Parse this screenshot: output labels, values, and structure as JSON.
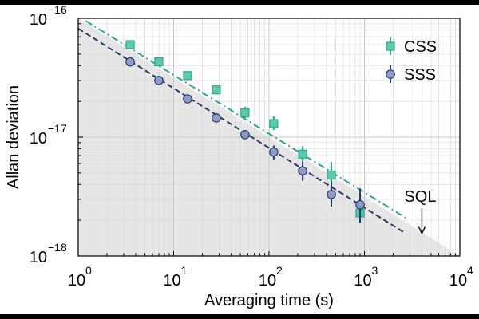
{
  "chart_data": {
    "type": "scatter",
    "xlabel": "Averaging time (s)",
    "ylabel": "Allan deviation",
    "xscale": "log",
    "yscale": "log",
    "xlim": [
      1,
      10000
    ],
    "ylim": [
      1e-18,
      1e-16
    ],
    "x_ticks": [
      {
        "value": 1,
        "base": "10",
        "exp": "0"
      },
      {
        "value": 10,
        "base": "10",
        "exp": "1"
      },
      {
        "value": 100,
        "base": "10",
        "exp": "2"
      },
      {
        "value": 1000,
        "base": "10",
        "exp": "3"
      },
      {
        "value": 10000,
        "base": "10",
        "exp": "4"
      }
    ],
    "y_ticks": [
      {
        "value": 1e-18,
        "base": "10",
        "exp": "−18"
      },
      {
        "value": 1e-17,
        "base": "10",
        "exp": "−17"
      },
      {
        "value": 1e-16,
        "base": "10",
        "exp": "−16"
      }
    ],
    "grid": true,
    "legend_position": "top-right",
    "colors": {
      "css": "#2aa98c",
      "css_fill": "#5cc9ad",
      "sss": "#2b3a6b",
      "sss_fill": "#8f9cc9",
      "sql_region": "#e6e6e6"
    },
    "series": [
      {
        "name": "CSS",
        "marker": "square",
        "points": [
          {
            "x": 3.5,
            "y": 6e-17,
            "err_low": 4e-18,
            "err_high": 4e-18
          },
          {
            "x": 7,
            "y": 4.3e-17,
            "err_low": 3e-18,
            "err_high": 3e-18
          },
          {
            "x": 14,
            "y": 3.3e-17,
            "err_low": 2e-18,
            "err_high": 2e-18
          },
          {
            "x": 28,
            "y": 2.5e-17,
            "err_low": 2e-18,
            "err_high": 2e-18
          },
          {
            "x": 56,
            "y": 1.6e-17,
            "err_low": 1.5e-18,
            "err_high": 2e-18
          },
          {
            "x": 112,
            "y": 1.3e-17,
            "err_low": 1.5e-18,
            "err_high": 2e-18
          },
          {
            "x": 225,
            "y": 7.2e-18,
            "err_low": 1e-18,
            "err_high": 1.2e-18
          },
          {
            "x": 450,
            "y": 4.8e-18,
            "err_low": 8e-19,
            "err_high": 1.4e-18
          },
          {
            "x": 900,
            "y": 2.3e-18,
            "err_low": 4e-19,
            "err_high": 5e-19
          }
        ]
      },
      {
        "name": "SSS",
        "marker": "circle",
        "points": [
          {
            "x": 3.5,
            "y": 4.3e-17,
            "err_low": 2e-18,
            "err_high": 2e-18
          },
          {
            "x": 7,
            "y": 3e-17,
            "err_low": 1.5e-18,
            "err_high": 1.5e-18
          },
          {
            "x": 14,
            "y": 2.1e-17,
            "err_low": 1e-18,
            "err_high": 1e-18
          },
          {
            "x": 28,
            "y": 1.45e-17,
            "err_low": 8e-19,
            "err_high": 8e-19
          },
          {
            "x": 56,
            "y": 1.05e-17,
            "err_low": 6e-19,
            "err_high": 6e-19
          },
          {
            "x": 112,
            "y": 7.5e-18,
            "err_low": 1e-18,
            "err_high": 1e-18
          },
          {
            "x": 225,
            "y": 5.2e-18,
            "err_low": 9e-19,
            "err_high": 1e-18
          },
          {
            "x": 450,
            "y": 3.3e-18,
            "err_low": 7e-19,
            "err_high": 9e-19
          },
          {
            "x": 900,
            "y": 2.7e-18,
            "err_low": 8e-19,
            "err_high": 1e-18
          }
        ]
      }
    ],
    "fit_lines": [
      {
        "series": "CSS",
        "style": "dash-dot",
        "x": [
          1.2,
          2700
        ],
        "y": [
          9.5e-17,
          2.1e-18
        ]
      },
      {
        "series": "SSS",
        "style": "dashed",
        "x": [
          1.0,
          2700
        ],
        "y": [
          8.2e-17,
          1.55e-18
        ]
      }
    ],
    "sql_region": {
      "x": [
        1,
        10000
      ],
      "y_top": [
        1e-16,
        1e-18
      ]
    },
    "annotations": [
      {
        "label": "SQL",
        "x": 4000,
        "y": 2.6e-18,
        "arrow_to_y": 1.55e-18
      }
    ]
  }
}
